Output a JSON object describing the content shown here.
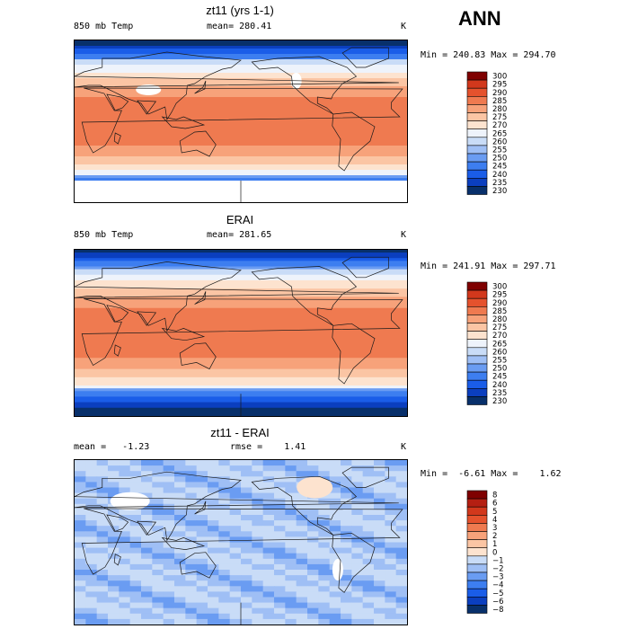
{
  "header": {
    "season": "ANN"
  },
  "panels": [
    {
      "title": "zt11 (yrs 1-1)",
      "left_label": "850 mb Temp",
      "center_label": "mean= 280.41",
      "right_label": "K",
      "minmax": "Min = 240.83 Max = 294.70",
      "field": "model"
    },
    {
      "title": "ERAI",
      "left_label": "850 mb Temp",
      "center_label": "mean= 281.65",
      "right_label": "K",
      "minmax": "Min = 241.91 Max = 297.71",
      "field": "obs"
    },
    {
      "title": "zt11 - ERAI",
      "left_label": "mean =   -1.23",
      "center_label": "rmse =    1.41",
      "right_label": "K",
      "minmax": "Min =  -6.61 Max =    1.62",
      "field": "diff"
    }
  ],
  "chart_data": [
    {
      "type": "heatmap",
      "title": "zt11 (yrs 1-1)",
      "variable": "850 mb Temp",
      "units": "K",
      "mean": 280.41,
      "min": 240.83,
      "max": 294.7,
      "colorbar_levels": [
        230,
        235,
        240,
        245,
        250,
        255,
        260,
        265,
        270,
        275,
        280,
        285,
        290,
        295,
        300
      ],
      "colorbar_labels": [
        "300",
        "295",
        "290",
        "285",
        "280",
        "275",
        "270",
        "265",
        "260",
        "255",
        "250",
        "245",
        "240",
        "235",
        "230"
      ]
    },
    {
      "type": "heatmap",
      "title": "ERAI",
      "variable": "850 mb Temp",
      "units": "K",
      "mean": 281.65,
      "min": 241.91,
      "max": 297.71,
      "colorbar_levels": [
        230,
        235,
        240,
        245,
        250,
        255,
        260,
        265,
        270,
        275,
        280,
        285,
        290,
        295,
        300
      ],
      "colorbar_labels": [
        "300",
        "295",
        "290",
        "285",
        "280",
        "275",
        "270",
        "265",
        "260",
        "255",
        "250",
        "245",
        "240",
        "235",
        "230"
      ]
    },
    {
      "type": "heatmap",
      "title": "zt11 - ERAI",
      "units": "K",
      "mean": -1.23,
      "rmse": 1.41,
      "min": -6.61,
      "max": 1.62,
      "colorbar_levels": [
        -8,
        -6,
        -5,
        -4,
        -3,
        -2,
        -1,
        0,
        1,
        2,
        3,
        4,
        5,
        6,
        8
      ],
      "colorbar_labels": [
        "8",
        "6",
        "5",
        "4",
        "3",
        "2",
        "1",
        "0",
        "−1",
        "−2",
        "−3",
        "−4",
        "−5",
        "−6",
        "−8"
      ]
    }
  ],
  "colors": {
    "temp_scale": [
      "#08306b",
      "#0b3fbf",
      "#1a5de8",
      "#3d7ef0",
      "#6a9cf2",
      "#9fbff5",
      "#c9dcf7",
      "#eef3fb",
      "#fde3cf",
      "#fbc5a4",
      "#f7a27a",
      "#ef7a50",
      "#e5522d",
      "#d2381c",
      "#7f0000"
    ],
    "diff_scale": [
      "#7f0000",
      "#b51f12",
      "#d2381c",
      "#e5522d",
      "#ef7a50",
      "#f7a27a",
      "#fbc5a4",
      "#fde3cf",
      "#c9dcf7",
      "#9fbff5",
      "#6a9cf2",
      "#3d7ef0",
      "#1a5de8",
      "#0b3fbf",
      "#08306b"
    ]
  }
}
